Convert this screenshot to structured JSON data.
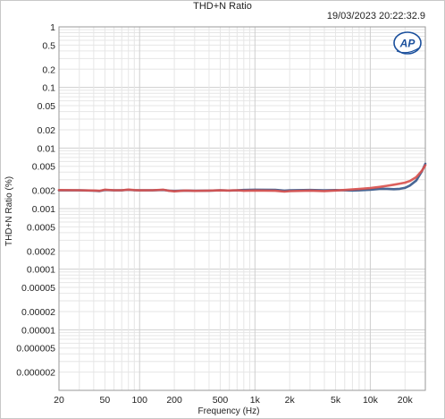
{
  "window": {
    "title": "THD+N Ratio",
    "timestamp": "19/03/2023 20:22:32.9",
    "logo_text": "AP"
  },
  "chart_data": {
    "type": "line",
    "title": "THD+N Ratio",
    "xlabel": "Frequency (Hz)",
    "ylabel": "THD+N Ratio (%)",
    "x_scale": "log",
    "y_scale": "log",
    "xlim": [
      20,
      30000
    ],
    "ylim": [
      1e-06,
      1
    ],
    "grid": true,
    "x_ticks": [
      {
        "value": 20,
        "label": "20"
      },
      {
        "value": 50,
        "label": "50"
      },
      {
        "value": 100,
        "label": "100"
      },
      {
        "value": 200,
        "label": "200"
      },
      {
        "value": 500,
        "label": "500"
      },
      {
        "value": 1000,
        "label": "1k"
      },
      {
        "value": 2000,
        "label": "2k"
      },
      {
        "value": 5000,
        "label": "5k"
      },
      {
        "value": 10000,
        "label": "10k"
      },
      {
        "value": 20000,
        "label": "20k"
      }
    ],
    "y_ticks": [
      {
        "value": 1,
        "label": "1"
      },
      {
        "value": 0.5,
        "label": "0.5"
      },
      {
        "value": 0.2,
        "label": "0.2"
      },
      {
        "value": 0.1,
        "label": "0.1"
      },
      {
        "value": 0.05,
        "label": "0.05"
      },
      {
        "value": 0.02,
        "label": "0.02"
      },
      {
        "value": 0.01,
        "label": "0.01"
      },
      {
        "value": 0.005,
        "label": "0.005"
      },
      {
        "value": 0.002,
        "label": "0.002"
      },
      {
        "value": 0.001,
        "label": "0.001"
      },
      {
        "value": 0.0005,
        "label": "0.0005"
      },
      {
        "value": 0.0002,
        "label": "0.0002"
      },
      {
        "value": 0.0001,
        "label": "0.0001"
      },
      {
        "value": 5e-05,
        "label": "0.00005"
      },
      {
        "value": 2e-05,
        "label": "0.00002"
      },
      {
        "value": 1e-05,
        "label": "0.00001"
      },
      {
        "value": 5e-06,
        "label": "0.000005"
      },
      {
        "value": 2e-06,
        "label": "0.000002"
      }
    ],
    "series": [
      {
        "color": "#3a5a8c",
        "x": [
          20,
          30,
          40,
          45,
          50,
          60,
          70,
          80,
          90,
          100,
          130,
          160,
          180,
          200,
          250,
          300,
          400,
          500,
          600,
          700,
          800,
          1000,
          1500,
          1800,
          2000,
          3000,
          4000,
          5000,
          6000,
          7000,
          8000,
          10000,
          12000,
          14000,
          16000,
          18000,
          20000,
          22000,
          25000,
          28000,
          30000
        ],
        "y": [
          0.002,
          0.002,
          0.00198,
          0.00195,
          0.00203,
          0.002,
          0.002,
          0.00204,
          0.00201,
          0.002,
          0.002,
          0.00203,
          0.00198,
          0.00196,
          0.00199,
          0.00197,
          0.00198,
          0.002,
          0.00199,
          0.002,
          0.00203,
          0.00205,
          0.00204,
          0.00198,
          0.00201,
          0.00203,
          0.002,
          0.00202,
          0.002,
          0.00199,
          0.002,
          0.00205,
          0.00212,
          0.00212,
          0.00209,
          0.00212,
          0.0022,
          0.0024,
          0.0029,
          0.0041,
          0.0055
        ]
      },
      {
        "color": "#d9534f",
        "x": [
          20,
          30,
          40,
          45,
          50,
          60,
          70,
          80,
          90,
          100,
          130,
          160,
          180,
          200,
          250,
          300,
          400,
          500,
          600,
          700,
          800,
          1000,
          1500,
          1800,
          2000,
          3000,
          4000,
          5000,
          6000,
          7000,
          8000,
          10000,
          12000,
          14000,
          16000,
          18000,
          20000,
          22000,
          25000,
          28000,
          30000
        ],
        "y": [
          0.00202,
          0.00201,
          0.00199,
          0.00197,
          0.00205,
          0.00201,
          0.00201,
          0.00206,
          0.00202,
          0.002,
          0.00201,
          0.00205,
          0.00197,
          0.00193,
          0.00199,
          0.00196,
          0.00198,
          0.002,
          0.00199,
          0.00201,
          0.00197,
          0.00199,
          0.00197,
          0.00191,
          0.00194,
          0.00198,
          0.00195,
          0.00199,
          0.00203,
          0.00207,
          0.00211,
          0.00218,
          0.00228,
          0.00238,
          0.00248,
          0.00258,
          0.00268,
          0.00285,
          0.0033,
          0.0042,
          0.0052
        ]
      }
    ]
  }
}
